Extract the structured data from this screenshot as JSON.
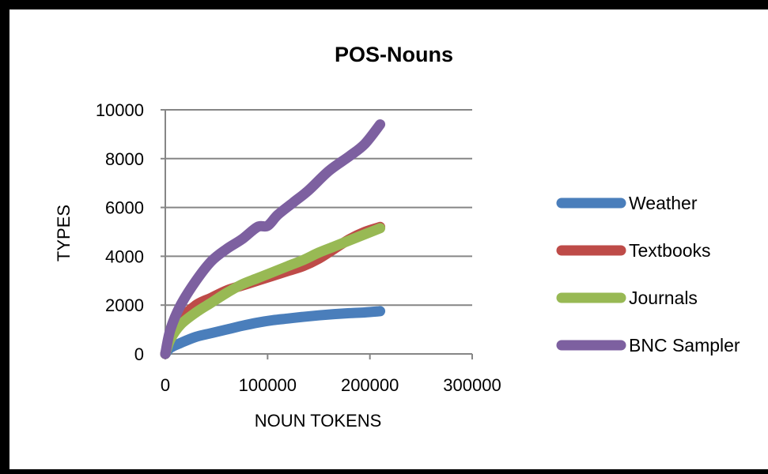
{
  "chart_data": {
    "type": "line",
    "title": "POS-Nouns",
    "xlabel": "NOUN TOKENS",
    "ylabel": "TYPES",
    "xlim": [
      0,
      300000
    ],
    "ylim": [
      0,
      10000
    ],
    "x_ticks": [
      "0",
      "100000",
      "200000",
      "300000"
    ],
    "y_ticks": [
      "0",
      "2000",
      "4000",
      "6000",
      "8000",
      "10000"
    ],
    "grid": "horizontal",
    "legend_position": "right",
    "series": [
      {
        "name": "Weather",
        "color": "#4a7ebb",
        "points": [
          [
            0,
            0
          ],
          [
            5000,
            250
          ],
          [
            15000,
            450
          ],
          [
            30000,
            700
          ],
          [
            45000,
            850
          ],
          [
            60000,
            1000
          ],
          [
            75000,
            1150
          ],
          [
            90000,
            1280
          ],
          [
            105000,
            1380
          ],
          [
            120000,
            1450
          ],
          [
            135000,
            1520
          ],
          [
            150000,
            1580
          ],
          [
            165000,
            1630
          ],
          [
            180000,
            1670
          ],
          [
            195000,
            1700
          ],
          [
            210000,
            1750
          ]
        ]
      },
      {
        "name": "Textbooks",
        "color": "#be4b48",
        "points": [
          [
            0,
            0
          ],
          [
            5000,
            700
          ],
          [
            15000,
            1400
          ],
          [
            30000,
            2000
          ],
          [
            45000,
            2300
          ],
          [
            60000,
            2600
          ],
          [
            75000,
            2800
          ],
          [
            90000,
            3000
          ],
          [
            105000,
            3200
          ],
          [
            120000,
            3400
          ],
          [
            135000,
            3600
          ],
          [
            150000,
            3900
          ],
          [
            165000,
            4300
          ],
          [
            180000,
            4700
          ],
          [
            195000,
            5000
          ],
          [
            210000,
            5200
          ]
        ]
      },
      {
        "name": "Journals",
        "color": "#98b954",
        "points": [
          [
            0,
            0
          ],
          [
            5000,
            600
          ],
          [
            15000,
            1200
          ],
          [
            30000,
            1700
          ],
          [
            45000,
            2100
          ],
          [
            60000,
            2500
          ],
          [
            75000,
            2850
          ],
          [
            90000,
            3100
          ],
          [
            105000,
            3350
          ],
          [
            120000,
            3600
          ],
          [
            135000,
            3850
          ],
          [
            150000,
            4150
          ],
          [
            165000,
            4400
          ],
          [
            180000,
            4650
          ],
          [
            195000,
            4900
          ],
          [
            210000,
            5150
          ]
        ]
      },
      {
        "name": "BNC Sampler",
        "color": "#7d60a0",
        "points": [
          [
            0,
            0
          ],
          [
            5000,
            1000
          ],
          [
            15000,
            2000
          ],
          [
            30000,
            3000
          ],
          [
            45000,
            3800
          ],
          [
            60000,
            4300
          ],
          [
            75000,
            4700
          ],
          [
            90000,
            5200
          ],
          [
            100000,
            5250
          ],
          [
            110000,
            5700
          ],
          [
            125000,
            6200
          ],
          [
            140000,
            6700
          ],
          [
            160000,
            7500
          ],
          [
            180000,
            8100
          ],
          [
            195000,
            8600
          ],
          [
            210000,
            9400
          ]
        ]
      }
    ]
  }
}
